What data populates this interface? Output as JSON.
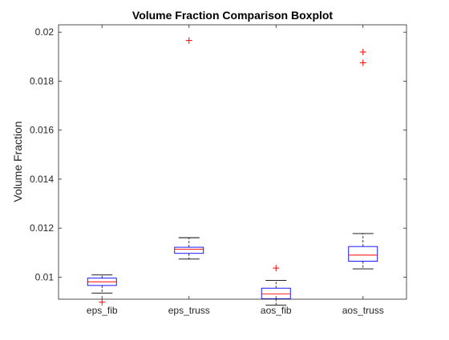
{
  "chart_data": {
    "type": "boxplot",
    "title": "Volume Fraction Comparison Boxplot",
    "xlabel": "",
    "ylabel": "Volume Fraction",
    "ylim": [
      0.0091,
      0.0203
    ],
    "yticks": [
      0.01,
      0.012,
      0.014,
      0.016,
      0.018,
      0.02
    ],
    "ytick_labels": [
      "0.01",
      "0.012",
      "0.014",
      "0.016",
      "0.018",
      "0.02"
    ],
    "grid": false,
    "categories": [
      "eps_fib",
      "eps_truss",
      "aos_fib",
      "aos_truss"
    ],
    "boxes": [
      {
        "label": "eps_fib",
        "whisker_low": 0.00935,
        "q1": 0.00966,
        "median": 0.00981,
        "q3": 0.00996,
        "whisker_high": 0.01009,
        "outliers": [
          0.00898
        ]
      },
      {
        "label": "eps_truss",
        "whisker_low": 0.01074,
        "q1": 0.01097,
        "median": 0.01114,
        "q3": 0.01122,
        "whisker_high": 0.01161,
        "outliers": [
          0.01966
        ]
      },
      {
        "label": "aos_fib",
        "whisker_low": 0.00886,
        "q1": 0.00912,
        "median": 0.00932,
        "q3": 0.00955,
        "whisker_high": 0.00987,
        "outliers": [
          0.01037
        ]
      },
      {
        "label": "aos_truss",
        "whisker_low": 0.01034,
        "q1": 0.01065,
        "median": 0.0109,
        "q3": 0.01125,
        "whisker_high": 0.01178,
        "outliers": [
          0.01919,
          0.01875
        ]
      }
    ],
    "colors": {
      "box": "#0000ff",
      "median": "#ff0000",
      "whisker": "#000000",
      "outlier": "#ff0000",
      "axis": "#262626"
    }
  }
}
